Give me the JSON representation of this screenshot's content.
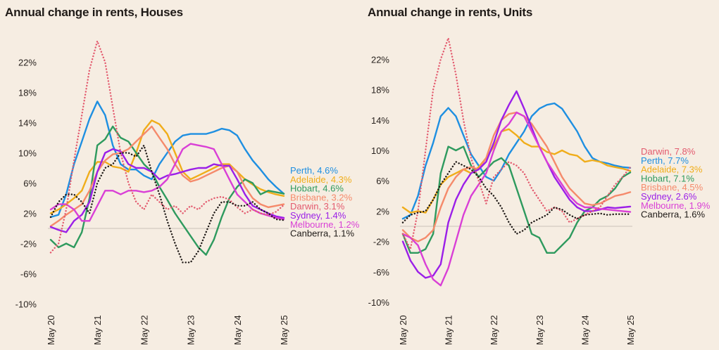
{
  "chart_data": [
    {
      "type": "line",
      "title": "Annual change in rents, Houses",
      "xlabel": "",
      "ylabel": "",
      "x_ticks": [
        "May 20",
        "May 21",
        "May 22",
        "May 23",
        "May 24",
        "May 25"
      ],
      "y_ticks": [
        "22%",
        "18%",
        "14%",
        "10%",
        "6%",
        "2%",
        "-2%",
        "-6%",
        "-10%"
      ],
      "y_tick_values": [
        22,
        18,
        14,
        10,
        6,
        2,
        -2,
        -6,
        -10
      ],
      "ylim": [
        -10,
        25
      ],
      "xlim": [
        0,
        5
      ],
      "x_unit": "years since May 2020",
      "grid": false,
      "zero_line": true,
      "x": [
        0,
        0.167,
        0.333,
        0.5,
        0.667,
        0.833,
        1.0,
        1.167,
        1.333,
        1.5,
        1.667,
        1.833,
        2.0,
        2.167,
        2.333,
        2.5,
        2.667,
        2.833,
        3.0,
        3.167,
        3.333,
        3.5,
        3.667,
        3.833,
        4.0,
        4.167,
        4.333,
        4.5,
        4.667,
        4.833,
        5.0
      ],
      "series": [
        {
          "name": "Perth",
          "end_label": "Perth, 4.6%",
          "color": "#1e8fe1",
          "style": "solid",
          "values": [
            1.5,
            1.8,
            4.5,
            8.5,
            11.5,
            14.5,
            16.8,
            15.0,
            11.0,
            8.5,
            7.8,
            7.8,
            7.0,
            6.5,
            8.5,
            10.0,
            11.5,
            12.3,
            12.5,
            12.5,
            12.5,
            12.8,
            13.2,
            13.0,
            12.3,
            10.5,
            9.0,
            7.8,
            6.5,
            5.5,
            4.6
          ]
        },
        {
          "name": "Adelaide",
          "end_label": "Adelaide, 4.3%",
          "color": "#f0ad1a",
          "style": "solid",
          "values": [
            2.0,
            2.5,
            3.2,
            4.0,
            5.0,
            7.5,
            8.8,
            8.8,
            8.2,
            8.0,
            7.5,
            10.0,
            13.0,
            14.3,
            13.8,
            12.5,
            10.0,
            7.5,
            6.5,
            7.0,
            7.5,
            8.0,
            8.5,
            8.5,
            7.5,
            6.5,
            5.8,
            5.2,
            4.8,
            4.5,
            4.3
          ]
        },
        {
          "name": "Hobart",
          "end_label": "Hobart, 4.6%",
          "color": "#2e9a5e",
          "style": "solid",
          "values": [
            -1.5,
            -2.5,
            -2.0,
            -2.5,
            -0.5,
            4.0,
            11.0,
            11.8,
            13.5,
            12.0,
            11.5,
            10.0,
            8.5,
            7.5,
            5.5,
            3.8,
            2.0,
            0.5,
            -1.0,
            -2.5,
            -3.5,
            -1.5,
            1.5,
            4.0,
            5.5,
            6.5,
            6.0,
            4.5,
            5.0,
            4.8,
            4.6
          ]
        },
        {
          "name": "Brisbane",
          "end_label": "Brisbane, 3.2%",
          "color": "#f58a6b",
          "style": "solid",
          "values": [
            0.3,
            1.0,
            1.8,
            2.5,
            3.2,
            5.0,
            7.5,
            9.0,
            9.8,
            10.0,
            10.5,
            11.5,
            12.5,
            13.5,
            12.0,
            10.5,
            8.5,
            7.0,
            6.2,
            6.5,
            7.0,
            7.5,
            8.0,
            8.3,
            7.5,
            5.5,
            4.0,
            3.2,
            2.8,
            3.0,
            3.2
          ]
        },
        {
          "name": "Darwin",
          "end_label": "Darwin, 3.1%",
          "color": "#e35a6e",
          "style": "dotted",
          "values": [
            -3.2,
            -2.0,
            2.5,
            9.0,
            15.0,
            21.0,
            24.8,
            22.0,
            16.0,
            10.0,
            6.0,
            3.5,
            2.5,
            4.5,
            3.5,
            2.5,
            3.0,
            2.0,
            3.0,
            2.5,
            3.5,
            4.0,
            4.2,
            3.8,
            2.8,
            2.0,
            2.5,
            2.0,
            1.8,
            2.2,
            3.1
          ]
        },
        {
          "name": "Sydney",
          "end_label": "Sydney, 1.4%",
          "color": "#9b1fe8",
          "style": "solid",
          "values": [
            0.2,
            -0.2,
            -0.5,
            1.0,
            1.8,
            3.5,
            7.5,
            10.0,
            10.5,
            10.2,
            8.5,
            8.0,
            8.0,
            7.5,
            6.5,
            7.0,
            7.2,
            7.5,
            7.8,
            8.0,
            8.0,
            8.5,
            8.3,
            8.3,
            6.5,
            4.5,
            3.0,
            2.5,
            2.0,
            1.6,
            1.4
          ]
        },
        {
          "name": "Melbourne",
          "end_label": "Melbourne, 1.2%",
          "color": "#d93fd6",
          "style": "solid",
          "values": [
            2.5,
            3.2,
            3.2,
            2.5,
            1.0,
            1.0,
            3.0,
            5.0,
            5.0,
            4.5,
            5.0,
            5.0,
            4.8,
            5.0,
            5.5,
            6.5,
            8.5,
            10.5,
            11.2,
            11.0,
            10.8,
            10.5,
            8.5,
            6.5,
            4.5,
            3.5,
            2.5,
            2.0,
            1.7,
            1.4,
            1.2
          ]
        },
        {
          "name": "Canberra",
          "end_label": "Canberra, 1.1%",
          "color": "#1f1a17",
          "style": "dotted",
          "values": [
            1.5,
            3.5,
            4.5,
            4.5,
            3.5,
            2.0,
            6.0,
            8.0,
            8.5,
            10.0,
            10.0,
            9.5,
            11.0,
            7.5,
            4.5,
            1.0,
            -2.0,
            -4.5,
            -4.5,
            -3.0,
            -0.5,
            2.0,
            3.5,
            3.5,
            3.0,
            3.0,
            3.5,
            2.5,
            2.0,
            1.2,
            1.1
          ]
        }
      ]
    },
    {
      "type": "line",
      "title": "Annual change in rents, Units",
      "xlabel": "",
      "ylabel": "",
      "x_ticks": [
        "May 20",
        "May 21",
        "May 22",
        "May 23",
        "May 24",
        "May 25"
      ],
      "y_ticks": [
        "22%",
        "18%",
        "14%",
        "10%",
        "6%",
        "2%",
        "-2%",
        "-6%",
        "-10%"
      ],
      "y_tick_values": [
        22,
        18,
        14,
        10,
        6,
        2,
        -2,
        -6,
        -10
      ],
      "ylim": [
        -10,
        25
      ],
      "xlim": [
        0,
        5
      ],
      "x_unit": "years since May 2020",
      "grid": false,
      "zero_line": true,
      "x": [
        0,
        0.167,
        0.333,
        0.5,
        0.667,
        0.833,
        1.0,
        1.167,
        1.333,
        1.5,
        1.667,
        1.833,
        2.0,
        2.167,
        2.333,
        2.5,
        2.667,
        2.833,
        3.0,
        3.167,
        3.333,
        3.5,
        3.667,
        3.833,
        4.0,
        4.167,
        4.333,
        4.5,
        4.667,
        4.833,
        5.0
      ],
      "series": [
        {
          "name": "Darwin",
          "end_label": "Darwin, 7.8%",
          "color": "#e35a6e",
          "style": "dotted",
          "values": [
            -1.0,
            -3.0,
            2.0,
            10.0,
            18.0,
            22.0,
            24.8,
            20.0,
            14.0,
            9.0,
            6.0,
            3.0,
            6.5,
            7.5,
            8.5,
            8.0,
            7.0,
            5.0,
            3.5,
            2.0,
            2.5,
            2.0,
            0.5,
            1.0,
            1.5,
            2.0,
            2.5,
            4.0,
            5.5,
            6.5,
            7.8
          ]
        },
        {
          "name": "Perth",
          "end_label": "Perth, 7.7%",
          "color": "#1e8fe1",
          "style": "solid",
          "values": [
            1.0,
            1.5,
            4.0,
            8.0,
            11.0,
            14.5,
            15.6,
            14.5,
            12.0,
            9.5,
            8.0,
            6.5,
            6.0,
            7.5,
            9.5,
            11.0,
            12.5,
            14.5,
            15.5,
            16.0,
            16.2,
            15.5,
            14.0,
            12.5,
            10.5,
            9.0,
            8.5,
            8.3,
            8.0,
            7.8,
            7.7
          ]
        },
        {
          "name": "Adelaide",
          "end_label": "Adelaide, 7.3%",
          "color": "#f0ad1a",
          "style": "solid",
          "values": [
            2.5,
            1.8,
            2.0,
            1.8,
            3.5,
            5.5,
            6.5,
            7.0,
            7.5,
            7.0,
            7.8,
            9.0,
            10.5,
            12.5,
            12.8,
            12.0,
            11.0,
            10.5,
            10.5,
            9.8,
            9.5,
            10.0,
            9.5,
            9.3,
            8.5,
            8.7,
            8.5,
            8.0,
            7.8,
            7.6,
            7.3
          ]
        },
        {
          "name": "Hobart",
          "end_label": "Hobart, 7.1%",
          "color": "#2e9a5e",
          "style": "solid",
          "values": [
            -1.0,
            -3.5,
            -3.5,
            -3.0,
            -1.0,
            7.0,
            10.5,
            10.0,
            10.5,
            8.0,
            6.5,
            7.5,
            8.5,
            9.0,
            8.0,
            5.0,
            2.0,
            -1.0,
            -1.5,
            -3.5,
            -3.5,
            -2.5,
            -1.5,
            0.5,
            2.0,
            2.5,
            3.5,
            4.0,
            5.0,
            6.5,
            7.1
          ]
        },
        {
          "name": "Brisbane",
          "end_label": "Brisbane, 4.5%",
          "color": "#f58a6b",
          "style": "solid",
          "values": [
            -0.5,
            -1.5,
            -2.0,
            -1.5,
            -0.5,
            2.5,
            5.0,
            6.5,
            7.5,
            7.8,
            7.5,
            9.0,
            12.0,
            14.0,
            14.8,
            15.0,
            14.5,
            13.5,
            12.0,
            10.5,
            8.5,
            6.5,
            5.0,
            4.0,
            3.0,
            2.8,
            3.0,
            3.5,
            4.0,
            4.2,
            4.5
          ]
        },
        {
          "name": "Sydney",
          "end_label": "Sydney, 2.6%",
          "color": "#9b1fe8",
          "style": "solid",
          "values": [
            -2.0,
            -4.5,
            -6.0,
            -6.8,
            -6.5,
            -5.0,
            0.5,
            3.5,
            5.5,
            7.0,
            7.5,
            8.5,
            11.0,
            14.0,
            16.0,
            17.8,
            15.5,
            13.0,
            10.5,
            8.5,
            6.5,
            5.0,
            3.5,
            2.5,
            2.0,
            2.0,
            2.2,
            2.5,
            2.4,
            2.5,
            2.6
          ]
        },
        {
          "name": "Melbourne",
          "end_label": "Melbourne, 1.9%",
          "color": "#d93fd6",
          "style": "solid",
          "values": [
            -1.0,
            -1.5,
            -2.5,
            -5.0,
            -7.0,
            -7.8,
            -5.5,
            -2.0,
            1.5,
            4.0,
            5.5,
            7.0,
            10.0,
            12.5,
            13.5,
            15.0,
            14.5,
            12.5,
            10.5,
            8.5,
            7.0,
            5.5,
            4.0,
            3.0,
            2.5,
            2.5,
            2.3,
            2.2,
            2.1,
            2.0,
            1.9
          ]
        },
        {
          "name": "Canberra",
          "end_label": "Canberra, 1.6%",
          "color": "#1f1a17",
          "style": "dotted",
          "values": [
            0.5,
            1.5,
            1.8,
            2.0,
            3.5,
            5.5,
            7.0,
            8.5,
            8.0,
            7.5,
            6.5,
            5.0,
            4.0,
            2.5,
            0.5,
            -1.0,
            -0.5,
            0.5,
            1.0,
            1.5,
            2.5,
            2.2,
            1.5,
            1.0,
            1.5,
            1.6,
            1.7,
            1.5,
            1.6,
            1.6,
            1.6
          ]
        }
      ]
    }
  ]
}
